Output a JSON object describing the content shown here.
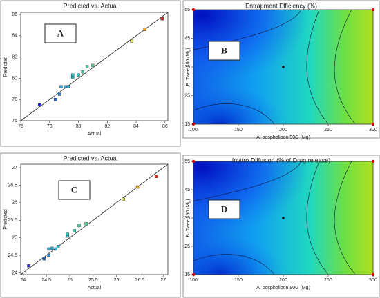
{
  "chart_data": [
    {
      "type": "scatter",
      "title": "Predicted vs. Actual",
      "label": "A",
      "x_label": "Actual",
      "y_label": "Predicted",
      "x": [
        77.3,
        78.4,
        78.7,
        78.8,
        79.1,
        79.3,
        79.6,
        79.6,
        80.0,
        80.3,
        80.6,
        81.0,
        83.7,
        84.6,
        85.8
      ],
      "values": [
        77.5,
        78.0,
        78.5,
        79.2,
        79.2,
        79.2,
        80.1,
        80.3,
        80.3,
        80.6,
        81.1,
        81.2,
        83.5,
        84.6,
        85.6
      ],
      "colors": [
        "#2a2ad0",
        "#2a6ad8",
        "#2a8ad8",
        "#30a0d8",
        "#30a8d0",
        "#30b0d0",
        "#30b8c8",
        "#30b8c0",
        "#30c0b8",
        "#38c8a8",
        "#40d0a0",
        "#48d890",
        "#d8e040",
        "#f0a020",
        "#e03020"
      ],
      "xlim": [
        76,
        86.2
      ],
      "xticks": [
        76,
        78,
        80,
        82,
        84,
        86
      ],
      "ylim": [
        76,
        86.2
      ],
      "yticks": [
        76,
        78,
        80,
        82,
        84,
        86
      ]
    },
    {
      "type": "contour",
      "title": "Entrapment Efficiency (%)",
      "label": "B",
      "x_label": "A: pospholipon 90G (Mg)",
      "y_label": "B: Tween 80 (Mg)",
      "xlim": [
        100,
        300
      ],
      "xticks": [
        100,
        150,
        200,
        250,
        300
      ],
      "ylim": [
        15,
        55
      ],
      "yticks": [
        15,
        25,
        35,
        45,
        55
      ]
    },
    {
      "type": "scatter",
      "title": "Predicted vs. Actual",
      "label": "C",
      "x_label": "Actual",
      "y_label": "Predicted",
      "x": [
        24.12,
        24.45,
        24.55,
        24.55,
        24.62,
        24.7,
        24.75,
        24.95,
        24.95,
        25.1,
        25.2,
        25.35,
        26.15,
        26.45,
        26.85
      ],
      "values": [
        24.2,
        24.4,
        24.5,
        24.68,
        24.7,
        24.68,
        24.75,
        25.05,
        25.1,
        25.2,
        25.35,
        25.4,
        26.1,
        26.45,
        26.75
      ],
      "colors": [
        "#2a2ad0",
        "#2a6ad8",
        "#2a8ad8",
        "#30a0d8",
        "#30a8d0",
        "#30b0d0",
        "#30b8c8",
        "#30b8c0",
        "#30c0b8",
        "#38c8a8",
        "#40d0a0",
        "#48d890",
        "#d8e040",
        "#f0a020",
        "#e03020"
      ],
      "xlim": [
        23.95,
        27.1
      ],
      "xticks": [
        24,
        24.5,
        25,
        25.5,
        26,
        26.5,
        27
      ],
      "ylim": [
        23.95,
        27.1
      ],
      "yticks": [
        24,
        24.5,
        25,
        25.5,
        26,
        26.5,
        27
      ]
    },
    {
      "type": "contour",
      "title": "Invitro Diffusion (% of Drug release)",
      "label": "D",
      "x_label": "A: pospholipon 90G (Mg)",
      "y_label": "B: Tween 80 (Mg)",
      "xlim": [
        100,
        300
      ],
      "xticks": [
        100,
        150,
        200,
        250,
        300
      ],
      "ylim": [
        15,
        55
      ],
      "yticks": [
        15,
        25,
        35,
        45,
        55
      ]
    }
  ]
}
